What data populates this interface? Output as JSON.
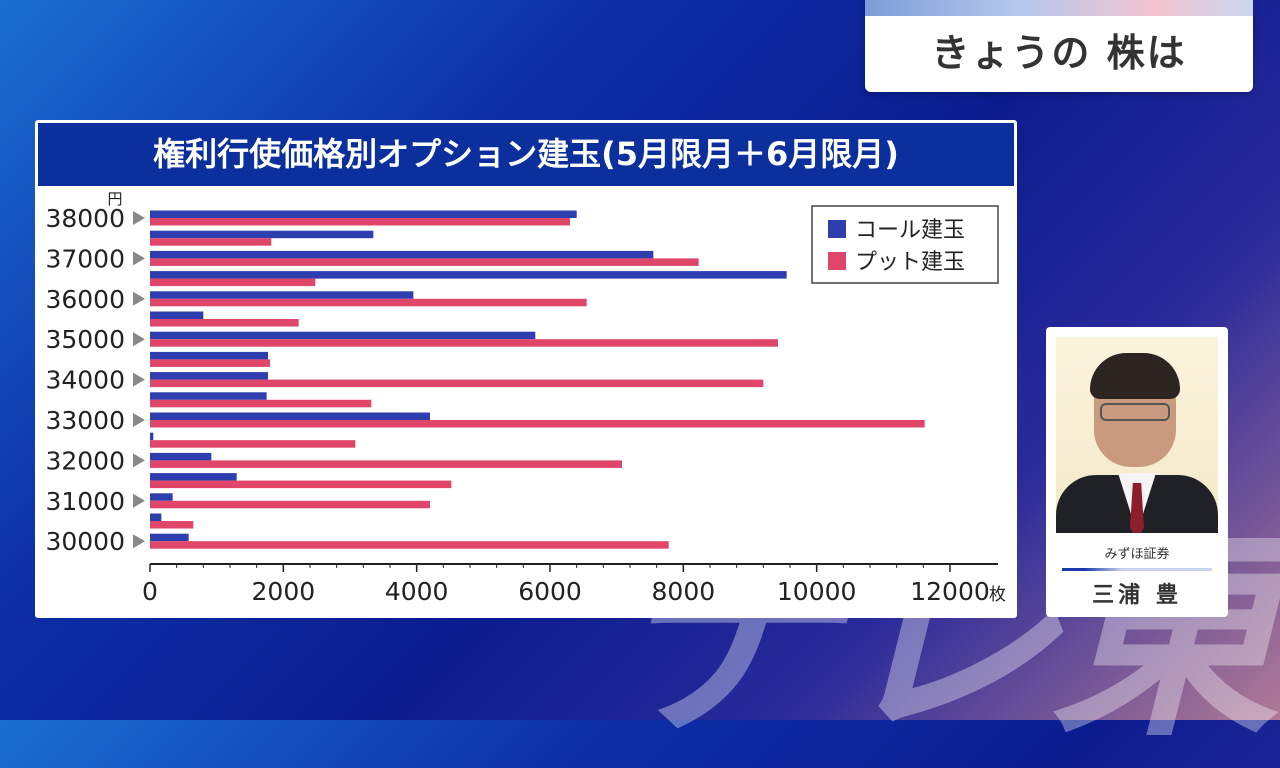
{
  "corner_title": "きょうの 株は",
  "chart_data": {
    "type": "bar",
    "orientation": "horizontal",
    "title": "権利行使価格別オプション建玉(5月限月＋6月限月)",
    "y_unit": "円",
    "x_unit": "枚",
    "categories": [
      "38000",
      "",
      "37000",
      "",
      "36000",
      "",
      "35000",
      "",
      "34000",
      "",
      "33000",
      "",
      "32000",
      "",
      "31000",
      "",
      "30000"
    ],
    "category_values": [
      38000,
      37500,
      37000,
      36500,
      36000,
      35500,
      35000,
      34500,
      34000,
      33500,
      33000,
      32500,
      32000,
      31500,
      31000,
      30500,
      30000
    ],
    "series": [
      {
        "name": "コール建玉",
        "color": "#2e3eae",
        "values": [
          6400,
          3350,
          7550,
          9550,
          3950,
          800,
          5780,
          1770,
          1770,
          1750,
          4200,
          50,
          920,
          1300,
          340,
          170,
          580
        ]
      },
      {
        "name": "プット建玉",
        "color": "#e0466a",
        "values": [
          6300,
          1820,
          8230,
          2480,
          6550,
          2230,
          9420,
          1800,
          9200,
          3320,
          11620,
          3080,
          7080,
          4520,
          4200,
          650,
          7780
        ]
      }
    ],
    "xlim": [
      0,
      12000
    ],
    "xticks": [
      0,
      2000,
      4000,
      6000,
      8000,
      10000,
      12000
    ],
    "xtick_labels": [
      "0",
      "2000",
      "4000",
      "6000",
      "8000",
      "10000",
      "12000"
    ],
    "legend_position": "top-right",
    "grid": false
  },
  "person": {
    "firm": "みずほ証券",
    "name": "三浦 豊"
  },
  "watermark": "テレ東"
}
